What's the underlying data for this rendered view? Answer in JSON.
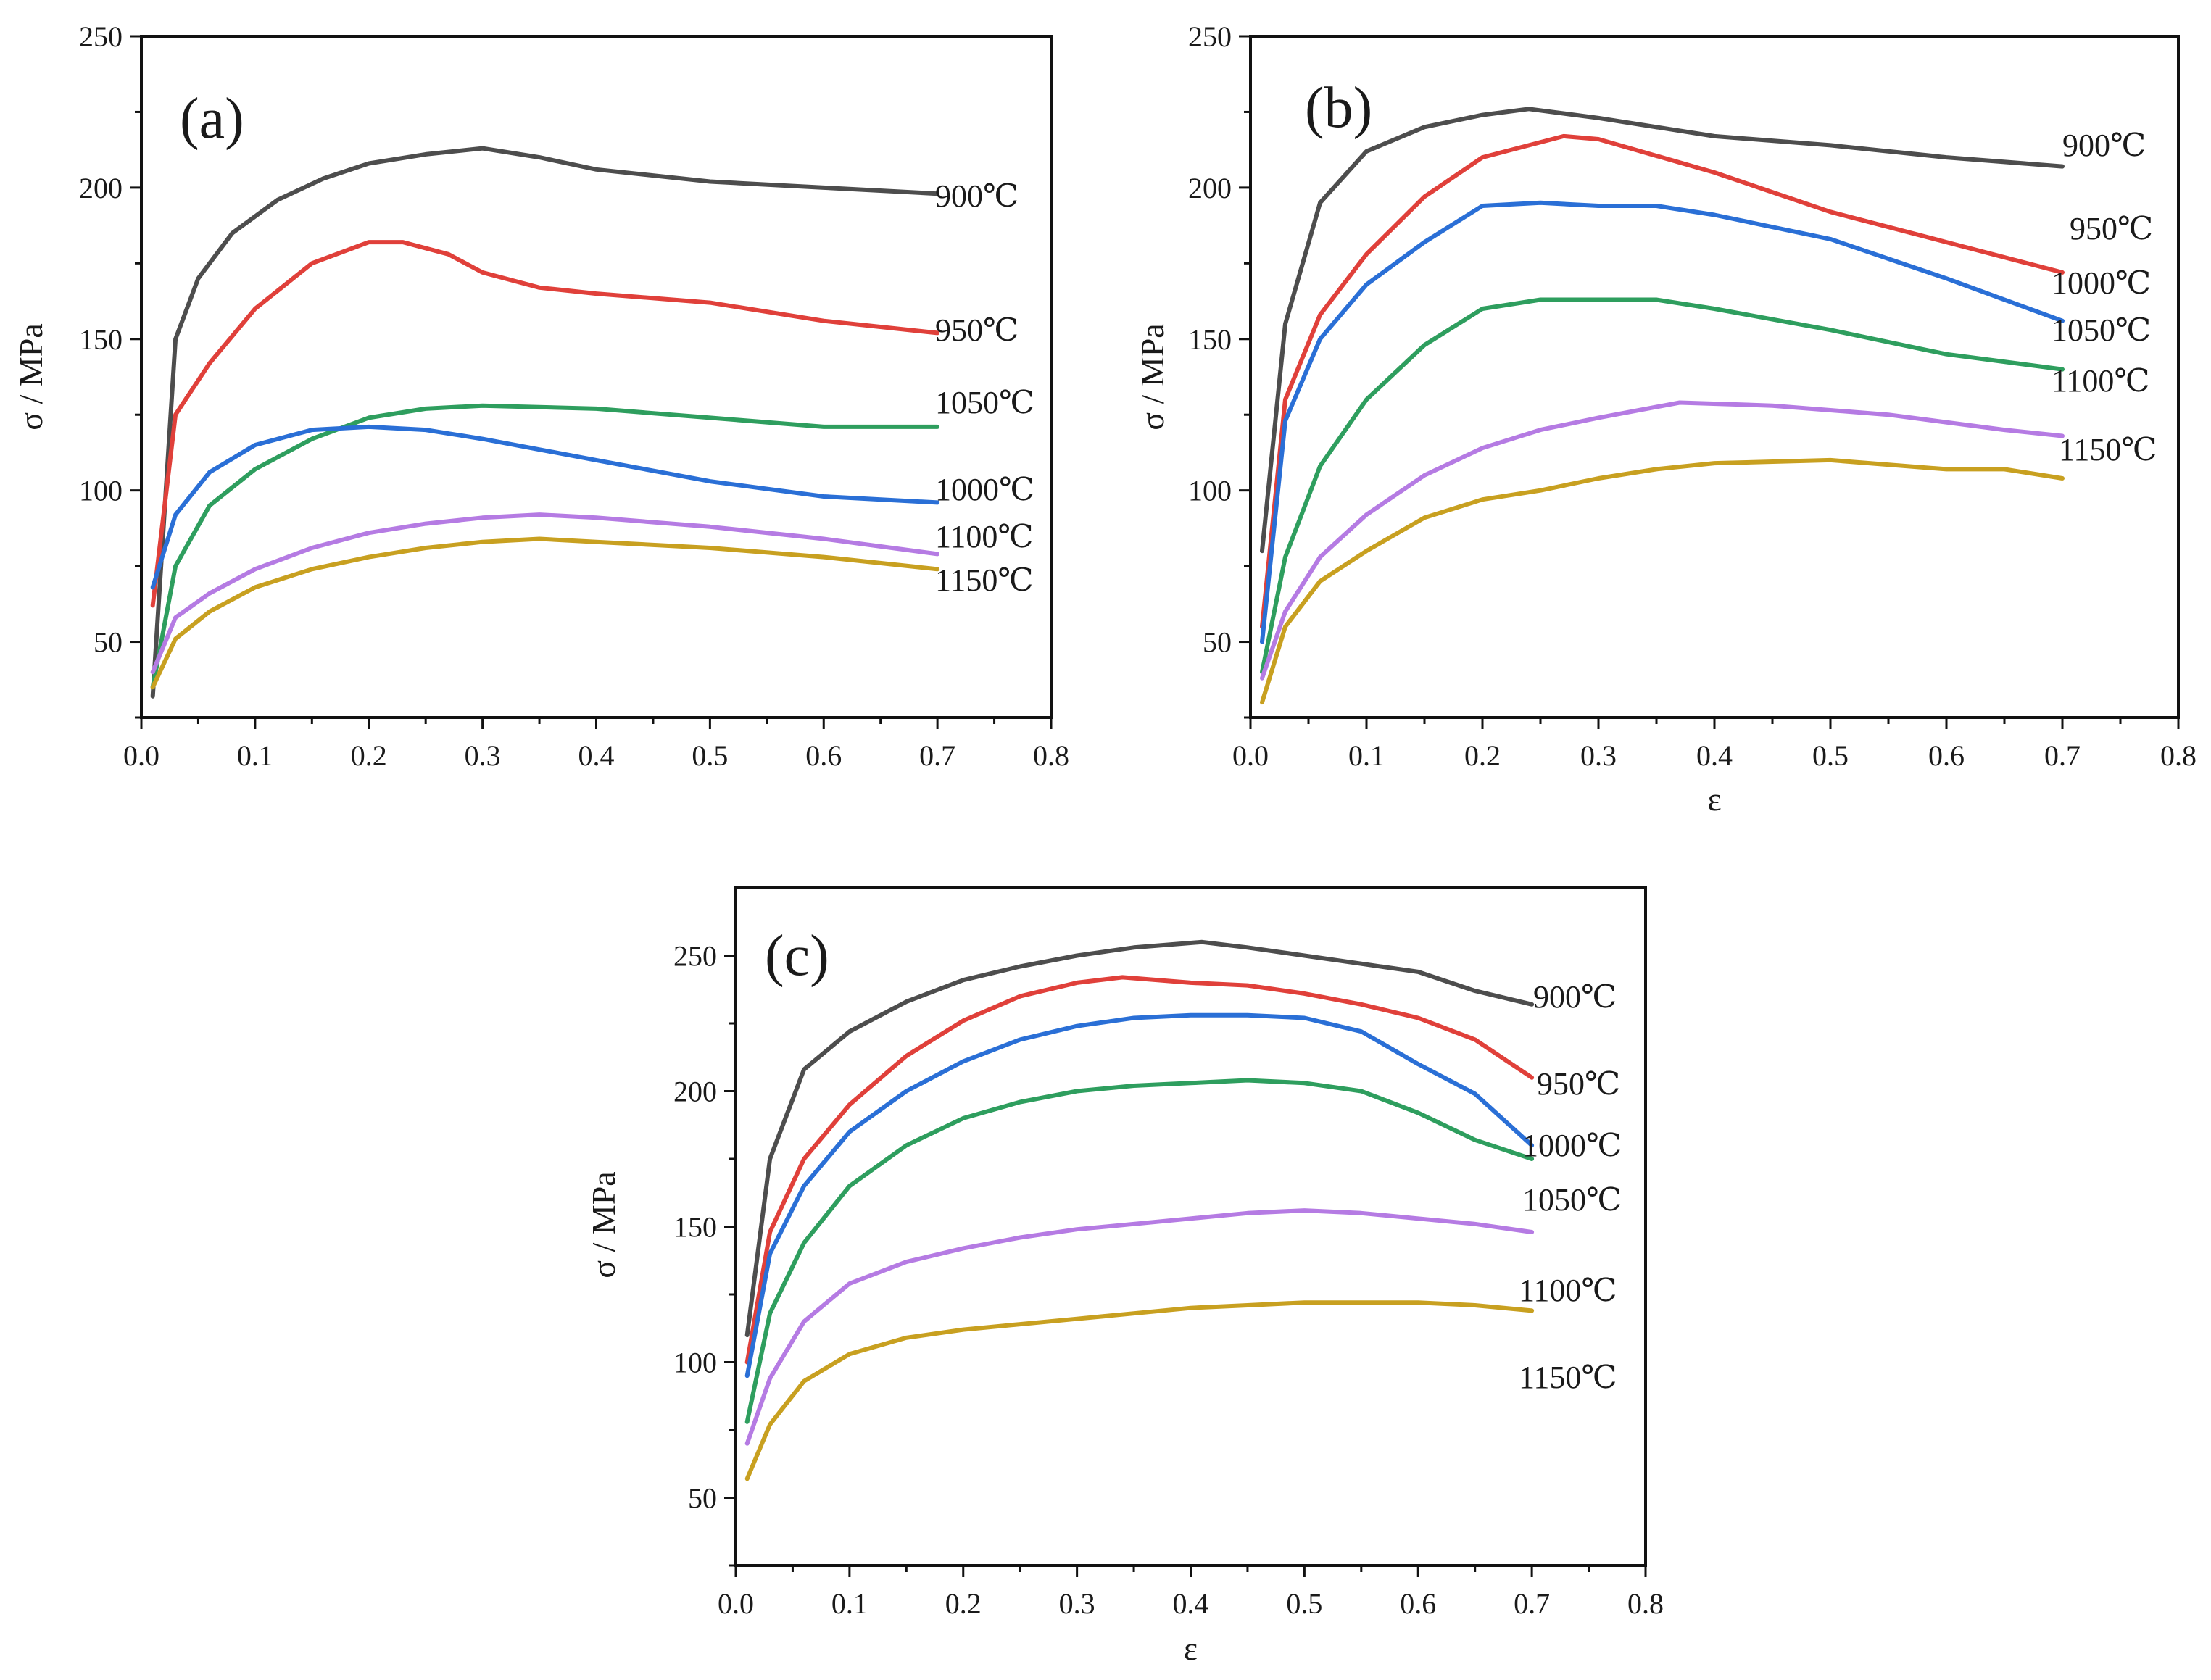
{
  "figure": {
    "colors": {
      "900℃": "#4d4d4d",
      "950℃": "#e0403a",
      "1000℃": "#2a6fd6",
      "1050℃": "#2e9e5e",
      "1100℃": "#b57be3",
      "1150℃": "#c8a020"
    }
  },
  "chart_data": [
    {
      "type": "line",
      "panel_label": "(a)",
      "xlabel": "",
      "ylabel": "σ / MPa",
      "xlim": [
        0.0,
        0.8
      ],
      "ylim": [
        25,
        250
      ],
      "xticks": [
        "0.0",
        "0.1",
        "0.2",
        "0.3",
        "0.4",
        "0.5",
        "0.6",
        "0.7",
        "0.8"
      ],
      "yticks": [
        "50",
        "100",
        "150",
        "200",
        "250"
      ],
      "grid": false,
      "series": [
        {
          "name": "900℃",
          "x": [
            0.01,
            0.03,
            0.05,
            0.08,
            0.12,
            0.16,
            0.2,
            0.25,
            0.3,
            0.35,
            0.4,
            0.5,
            0.6,
            0.7
          ],
          "y": [
            32,
            150,
            170,
            185,
            196,
            203,
            208,
            211,
            213,
            210,
            206,
            202,
            200,
            198
          ]
        },
        {
          "name": "950℃",
          "x": [
            0.01,
            0.03,
            0.06,
            0.1,
            0.15,
            0.2,
            0.23,
            0.27,
            0.3,
            0.35,
            0.4,
            0.5,
            0.6,
            0.7
          ],
          "y": [
            62,
            125,
            142,
            160,
            175,
            182,
            182,
            178,
            172,
            167,
            165,
            162,
            156,
            152
          ]
        },
        {
          "name": "1050℃",
          "x": [
            0.01,
            0.03,
            0.06,
            0.1,
            0.15,
            0.2,
            0.25,
            0.3,
            0.4,
            0.5,
            0.6,
            0.7
          ],
          "y": [
            35,
            75,
            95,
            107,
            117,
            124,
            127,
            128,
            127,
            124,
            121,
            121
          ]
        },
        {
          "name": "1000℃",
          "x": [
            0.01,
            0.03,
            0.06,
            0.1,
            0.15,
            0.2,
            0.25,
            0.3,
            0.4,
            0.5,
            0.6,
            0.7
          ],
          "y": [
            68,
            92,
            106,
            115,
            120,
            121,
            120,
            117,
            110,
            103,
            98,
            96
          ]
        },
        {
          "name": "1100℃",
          "x": [
            0.01,
            0.03,
            0.06,
            0.1,
            0.15,
            0.2,
            0.25,
            0.3,
            0.35,
            0.4,
            0.5,
            0.6,
            0.7
          ],
          "y": [
            40,
            58,
            66,
            74,
            81,
            86,
            89,
            91,
            92,
            91,
            88,
            84,
            79
          ]
        },
        {
          "name": "1150℃",
          "x": [
            0.01,
            0.03,
            0.06,
            0.1,
            0.15,
            0.2,
            0.25,
            0.3,
            0.35,
            0.4,
            0.5,
            0.6,
            0.7
          ],
          "y": [
            35,
            51,
            60,
            68,
            74,
            78,
            81,
            83,
            84,
            83,
            81,
            78,
            74
          ]
        }
      ],
      "series_labels": [
        "900℃",
        "950℃",
        "1050℃",
        "1000℃",
        "1100℃",
        "1150℃"
      ]
    },
    {
      "type": "line",
      "panel_label": "(b)",
      "xlabel": "ε",
      "ylabel": "σ / MPa",
      "xlim": [
        0.0,
        0.8
      ],
      "ylim": [
        25,
        250
      ],
      "xticks": [
        "0.0",
        "0.1",
        "0.2",
        "0.3",
        "0.4",
        "0.5",
        "0.6",
        "0.7",
        "0.8"
      ],
      "yticks": [
        "50",
        "100",
        "150",
        "200",
        "250"
      ],
      "grid": false,
      "series": [
        {
          "name": "900℃",
          "x": [
            0.01,
            0.03,
            0.06,
            0.1,
            0.15,
            0.2,
            0.24,
            0.3,
            0.4,
            0.5,
            0.6,
            0.7
          ],
          "y": [
            80,
            155,
            195,
            212,
            220,
            224,
            226,
            223,
            217,
            214,
            210,
            207
          ]
        },
        {
          "name": "950℃",
          "x": [
            0.01,
            0.03,
            0.06,
            0.1,
            0.15,
            0.2,
            0.27,
            0.3,
            0.4,
            0.5,
            0.6,
            0.7
          ],
          "y": [
            55,
            130,
            158,
            178,
            197,
            210,
            217,
            216,
            205,
            192,
            182,
            172
          ]
        },
        {
          "name": "1000℃",
          "x": [
            0.01,
            0.03,
            0.06,
            0.1,
            0.15,
            0.2,
            0.25,
            0.3,
            0.35,
            0.4,
            0.5,
            0.6,
            0.7
          ],
          "y": [
            50,
            123,
            150,
            168,
            182,
            194,
            195,
            194,
            194,
            191,
            183,
            170,
            156
          ]
        },
        {
          "name": "1050℃",
          "x": [
            0.01,
            0.03,
            0.06,
            0.1,
            0.15,
            0.2,
            0.25,
            0.3,
            0.35,
            0.4,
            0.5,
            0.6,
            0.7
          ],
          "y": [
            40,
            78,
            108,
            130,
            148,
            160,
            163,
            163,
            163,
            160,
            153,
            145,
            140
          ]
        },
        {
          "name": "1100℃",
          "x": [
            0.01,
            0.03,
            0.06,
            0.1,
            0.15,
            0.2,
            0.25,
            0.3,
            0.37,
            0.45,
            0.55,
            0.65,
            0.7
          ],
          "y": [
            38,
            60,
            78,
            92,
            105,
            114,
            120,
            124,
            129,
            128,
            125,
            120,
            118
          ]
        },
        {
          "name": "1150℃",
          "x": [
            0.01,
            0.03,
            0.06,
            0.1,
            0.15,
            0.2,
            0.25,
            0.3,
            0.35,
            0.4,
            0.5,
            0.6,
            0.65,
            0.7
          ],
          "y": [
            30,
            55,
            70,
            80,
            91,
            97,
            100,
            104,
            107,
            109,
            110,
            107,
            107,
            104
          ]
        }
      ],
      "series_labels": [
        "900℃",
        "950℃",
        "1000℃",
        "1050℃",
        "1100℃",
        "1150℃"
      ]
    },
    {
      "type": "line",
      "panel_label": "(c)",
      "xlabel": "ε",
      "ylabel": "σ / MPa",
      "xlim": [
        0.0,
        0.8
      ],
      "ylim": [
        25,
        275
      ],
      "xticks": [
        "0.0",
        "0.1",
        "0.2",
        "0.3",
        "0.4",
        "0.5",
        "0.6",
        "0.7",
        "0.8"
      ],
      "yticks": [
        "50",
        "100",
        "150",
        "200",
        "250"
      ],
      "grid": false,
      "series": [
        {
          "name": "900℃",
          "x": [
            0.01,
            0.03,
            0.06,
            0.1,
            0.15,
            0.2,
            0.25,
            0.3,
            0.35,
            0.41,
            0.45,
            0.5,
            0.55,
            0.6,
            0.65,
            0.7
          ],
          "y": [
            110,
            175,
            208,
            222,
            233,
            241,
            246,
            250,
            253,
            255,
            253,
            250,
            247,
            244,
            237,
            232
          ]
        },
        {
          "name": "950℃",
          "x": [
            0.01,
            0.03,
            0.06,
            0.1,
            0.15,
            0.2,
            0.25,
            0.3,
            0.34,
            0.4,
            0.45,
            0.5,
            0.55,
            0.6,
            0.65,
            0.7
          ],
          "y": [
            100,
            148,
            175,
            195,
            213,
            226,
            235,
            240,
            242,
            240,
            239,
            236,
            232,
            227,
            219,
            205
          ]
        },
        {
          "name": "1000℃",
          "x": [
            0.01,
            0.03,
            0.06,
            0.1,
            0.15,
            0.2,
            0.25,
            0.3,
            0.35,
            0.4,
            0.45,
            0.5,
            0.55,
            0.6,
            0.65,
            0.7
          ],
          "y": [
            95,
            140,
            165,
            185,
            200,
            211,
            219,
            224,
            227,
            228,
            228,
            227,
            222,
            210,
            199,
            180
          ]
        },
        {
          "name": "1050℃",
          "x": [
            0.01,
            0.03,
            0.06,
            0.1,
            0.15,
            0.2,
            0.25,
            0.3,
            0.35,
            0.4,
            0.45,
            0.5,
            0.55,
            0.6,
            0.65,
            0.7
          ],
          "y": [
            78,
            118,
            144,
            165,
            180,
            190,
            196,
            200,
            202,
            203,
            204,
            203,
            200,
            192,
            182,
            175
          ]
        },
        {
          "name": "1100℃",
          "x": [
            0.01,
            0.03,
            0.06,
            0.1,
            0.15,
            0.2,
            0.25,
            0.3,
            0.35,
            0.4,
            0.45,
            0.5,
            0.55,
            0.6,
            0.65,
            0.7
          ],
          "y": [
            70,
            94,
            115,
            129,
            137,
            142,
            146,
            149,
            151,
            153,
            155,
            156,
            155,
            153,
            151,
            148
          ]
        },
        {
          "name": "1150℃",
          "x": [
            0.01,
            0.03,
            0.06,
            0.1,
            0.15,
            0.2,
            0.25,
            0.3,
            0.35,
            0.4,
            0.45,
            0.5,
            0.55,
            0.6,
            0.65,
            0.7
          ],
          "y": [
            57,
            77,
            93,
            103,
            109,
            112,
            114,
            116,
            118,
            120,
            121,
            122,
            122,
            122,
            121,
            119
          ]
        }
      ],
      "series_labels": [
        "900℃",
        "950℃",
        "1000℃",
        "1050℃",
        "1100℃",
        "1150℃"
      ]
    }
  ]
}
